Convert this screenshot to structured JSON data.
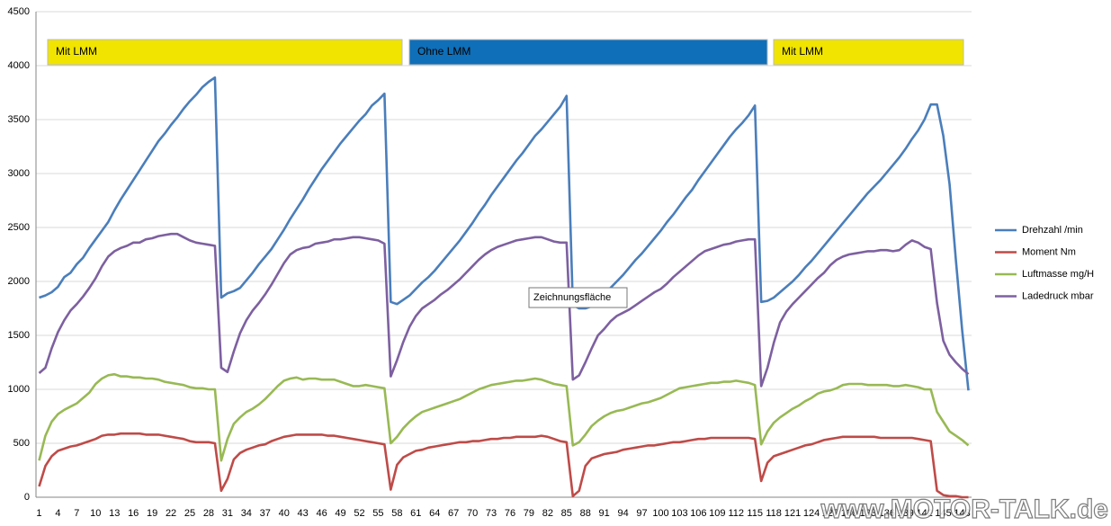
{
  "chart_data": {
    "type": "line",
    "categories": [
      1,
      null,
      null,
      4,
      null,
      null,
      7,
      null,
      null,
      10,
      null,
      null,
      13,
      null,
      null,
      16,
      null,
      null,
      19,
      null,
      null,
      22,
      null,
      null,
      25,
      null,
      null,
      28,
      null,
      null,
      31,
      null,
      null,
      34,
      null,
      null,
      37,
      null,
      null,
      40,
      null,
      null,
      43,
      null,
      null,
      46,
      null,
      null,
      49,
      null,
      null,
      52,
      null,
      null,
      55,
      null,
      null,
      58,
      null,
      null,
      61,
      null,
      null,
      64,
      null,
      null,
      67,
      null,
      null,
      70,
      null,
      null,
      73,
      null,
      null,
      76,
      null,
      null,
      79,
      null,
      null,
      82,
      null,
      null,
      85,
      null,
      null,
      88,
      null,
      null,
      91,
      null,
      null,
      94,
      null,
      null,
      97,
      null,
      null,
      100,
      null,
      null,
      103,
      null,
      null,
      106,
      null,
      null,
      109,
      null,
      null,
      112,
      null,
      null,
      115,
      null,
      null,
      118,
      null,
      null,
      121,
      null,
      null,
      124,
      null,
      null,
      127,
      null,
      null,
      130,
      null,
      null,
      133,
      null,
      null,
      136,
      null,
      null,
      139,
      null,
      null,
      142,
      null,
      null,
      145,
      null,
      null,
      148,
      null
    ],
    "series": [
      {
        "name": "Drehzahl /min",
        "color": "#4a7ebb",
        "values": [
          1850,
          1870,
          1900,
          1950,
          2040,
          2080,
          2160,
          2220,
          2310,
          2390,
          2470,
          2550,
          2660,
          2760,
          2850,
          2940,
          3030,
          3120,
          3210,
          3300,
          3370,
          3450,
          3520,
          3600,
          3670,
          3730,
          3800,
          3850,
          3890,
          1850,
          1890,
          1910,
          1940,
          2010,
          2080,
          2160,
          2230,
          2300,
          2390,
          2480,
          2580,
          2670,
          2760,
          2860,
          2950,
          3040,
          3120,
          3200,
          3280,
          3350,
          3420,
          3490,
          3550,
          3630,
          3680,
          3740,
          1810,
          1790,
          1830,
          1870,
          1930,
          1990,
          2040,
          2100,
          2170,
          2240,
          2310,
          2380,
          2460,
          2540,
          2630,
          2710,
          2800,
          2880,
          2960,
          3040,
          3120,
          3190,
          3270,
          3350,
          3410,
          3480,
          3550,
          3620,
          3720,
          1780,
          1750,
          1750,
          1770,
          1820,
          1880,
          1940,
          2000,
          2060,
          2130,
          2200,
          2260,
          2330,
          2400,
          2470,
          2550,
          2620,
          2700,
          2780,
          2850,
          2940,
          3020,
          3100,
          3180,
          3260,
          3340,
          3410,
          3470,
          3540,
          3630,
          1810,
          1820,
          1850,
          1900,
          1950,
          2000,
          2060,
          2130,
          2190,
          2260,
          2330,
          2400,
          2470,
          2540,
          2610,
          2680,
          2750,
          2820,
          2880,
          2940,
          3010,
          3080,
          3150,
          3230,
          3320,
          3400,
          3500,
          3640,
          3640,
          3350,
          2900,
          2200,
          1550,
          990
        ]
      },
      {
        "name": "Moment Nm",
        "color": "#be4b48",
        "values": [
          100,
          290,
          380,
          430,
          450,
          470,
          480,
          500,
          520,
          540,
          570,
          580,
          580,
          590,
          590,
          590,
          590,
          580,
          580,
          580,
          570,
          560,
          550,
          540,
          520,
          510,
          510,
          510,
          500,
          60,
          170,
          350,
          410,
          440,
          460,
          480,
          490,
          520,
          540,
          560,
          570,
          580,
          580,
          580,
          580,
          580,
          570,
          570,
          560,
          550,
          540,
          530,
          520,
          510,
          500,
          490,
          70,
          300,
          370,
          400,
          430,
          440,
          460,
          470,
          480,
          490,
          500,
          510,
          510,
          520,
          520,
          530,
          540,
          540,
          550,
          550,
          560,
          560,
          560,
          560,
          570,
          560,
          540,
          520,
          510,
          10,
          60,
          290,
          360,
          380,
          400,
          410,
          420,
          440,
          450,
          460,
          470,
          480,
          480,
          490,
          500,
          510,
          510,
          520,
          530,
          540,
          540,
          550,
          550,
          550,
          550,
          550,
          550,
          550,
          540,
          150,
          320,
          380,
          400,
          420,
          440,
          460,
          480,
          490,
          510,
          530,
          540,
          550,
          560,
          560,
          560,
          560,
          560,
          560,
          550,
          550,
          550,
          550,
          550,
          550,
          540,
          530,
          520,
          60,
          20,
          10,
          10,
          0,
          0
        ]
      },
      {
        "name": "Luftmasse mg/H",
        "color": "#98b954",
        "values": [
          340,
          570,
          700,
          770,
          810,
          840,
          870,
          920,
          970,
          1050,
          1100,
          1130,
          1140,
          1120,
          1120,
          1110,
          1110,
          1100,
          1100,
          1090,
          1070,
          1060,
          1050,
          1040,
          1020,
          1010,
          1010,
          1000,
          1000,
          340,
          540,
          680,
          740,
          790,
          820,
          860,
          910,
          970,
          1030,
          1080,
          1100,
          1110,
          1090,
          1100,
          1100,
          1090,
          1090,
          1090,
          1070,
          1050,
          1030,
          1030,
          1040,
          1030,
          1020,
          1010,
          500,
          560,
          640,
          700,
          750,
          790,
          810,
          830,
          850,
          870,
          890,
          910,
          940,
          970,
          1000,
          1020,
          1040,
          1050,
          1060,
          1070,
          1080,
          1080,
          1090,
          1100,
          1090,
          1070,
          1050,
          1040,
          1030,
          480,
          510,
          580,
          660,
          710,
          750,
          780,
          800,
          810,
          830,
          850,
          870,
          880,
          900,
          920,
          950,
          980,
          1010,
          1020,
          1030,
          1040,
          1050,
          1060,
          1060,
          1070,
          1070,
          1080,
          1070,
          1060,
          1040,
          490,
          610,
          690,
          740,
          780,
          820,
          850,
          890,
          920,
          960,
          980,
          990,
          1010,
          1040,
          1050,
          1050,
          1050,
          1040,
          1040,
          1040,
          1040,
          1030,
          1030,
          1040,
          1030,
          1020,
          1000,
          1000,
          790,
          700,
          610,
          570,
          530,
          480
        ]
      },
      {
        "name": "Ladedruck mbar",
        "color": "#7d60a0",
        "values": [
          1150,
          1200,
          1380,
          1530,
          1640,
          1730,
          1790,
          1860,
          1940,
          2030,
          2140,
          2230,
          2280,
          2310,
          2330,
          2360,
          2360,
          2390,
          2400,
          2420,
          2430,
          2440,
          2440,
          2410,
          2380,
          2360,
          2350,
          2340,
          2330,
          1200,
          1160,
          1350,
          1520,
          1640,
          1730,
          1800,
          1880,
          1970,
          2070,
          2170,
          2250,
          2290,
          2310,
          2320,
          2350,
          2360,
          2370,
          2390,
          2390,
          2400,
          2410,
          2410,
          2400,
          2390,
          2380,
          2350,
          1120,
          1270,
          1440,
          1580,
          1680,
          1750,
          1790,
          1830,
          1880,
          1920,
          1970,
          2020,
          2080,
          2140,
          2200,
          2250,
          2290,
          2320,
          2340,
          2360,
          2380,
          2390,
          2400,
          2410,
          2410,
          2390,
          2370,
          2360,
          2360,
          1090,
          1130,
          1250,
          1380,
          1500,
          1560,
          1630,
          1680,
          1710,
          1740,
          1780,
          1820,
          1860,
          1900,
          1930,
          1980,
          2040,
          2090,
          2140,
          2190,
          2240,
          2280,
          2300,
          2320,
          2340,
          2350,
          2370,
          2380,
          2390,
          2390,
          1030,
          1200,
          1430,
          1620,
          1720,
          1790,
          1850,
          1910,
          1970,
          2030,
          2080,
          2150,
          2200,
          2230,
          2250,
          2260,
          2270,
          2280,
          2280,
          2290,
          2290,
          2280,
          2290,
          2340,
          2380,
          2360,
          2320,
          2300,
          1800,
          1450,
          1320,
          1250,
          1190,
          1140
        ]
      }
    ],
    "ylim": [
      0,
      4500
    ],
    "yticks": [
      0,
      500,
      1000,
      1500,
      2000,
      2500,
      3000,
      3500,
      4000,
      4500
    ],
    "grid": true,
    "legend": "right",
    "annotations": [
      {
        "text": "Mit LMM",
        "color": "#f0e400"
      },
      {
        "text": "Ohne LMM",
        "color": "#0f6fb8"
      },
      {
        "text": "Mit LMM",
        "color": "#f0e400"
      }
    ],
    "tooltip": "Zeichnungsfläche",
    "watermark": "www.MOTOR-TALK.de"
  }
}
